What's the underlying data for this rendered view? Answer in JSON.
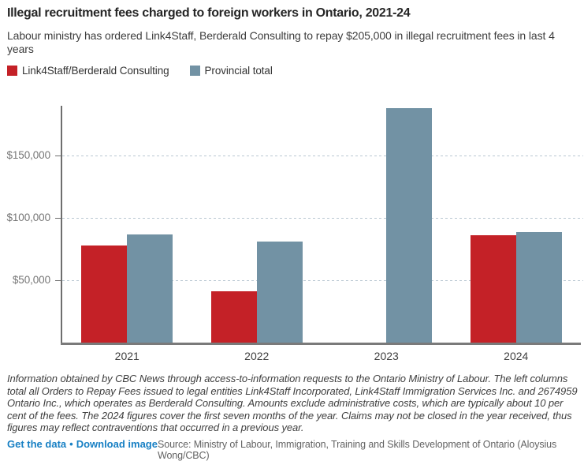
{
  "header": {
    "title": "Illegal recruitment fees charged to foreign workers in Ontario, 2021-24",
    "subtitle": "Labour ministry has ordered Link4Staff, Berderald Consulting to repay $205,000 in illegal recruitment fees in last 4 years"
  },
  "legend": {
    "items": [
      {
        "label": "Link4Staff/Berderald Consulting",
        "color": "#c42127"
      },
      {
        "label": "Provincial total",
        "color": "#7292a4"
      }
    ]
  },
  "chart_data": {
    "type": "bar",
    "title": "Illegal recruitment fees charged to foreign workers in Ontario, 2021-24",
    "categories": [
      "2021",
      "2022",
      "2023",
      "2024"
    ],
    "series": [
      {
        "name": "Link4Staff/Berderald Consulting",
        "color": "#c42127",
        "values": [
          78000,
          41000,
          0,
          86000
        ]
      },
      {
        "name": "Provincial total",
        "color": "#7292a4",
        "values": [
          87000,
          81000,
          188000,
          89000
        ]
      }
    ],
    "xlabel": "",
    "ylabel": "",
    "ylim": [
      0,
      190000
    ],
    "yticks": [
      {
        "value": 50000,
        "label": "$50,000"
      },
      {
        "value": 100000,
        "label": "$100,000"
      },
      {
        "value": 150000,
        "label": "$150,000"
      }
    ],
    "grid": "horizontal-dotted",
    "legend_position": "top-left",
    "colors": {
      "grid_line": "#b9c7d2",
      "y_axis_line": "#6e6e6e",
      "x_axis_line": "#7a7a7a"
    }
  },
  "footer": {
    "note": "Information obtained by CBC News through access-to-information requests to the Ontario Ministry of Labour. The left columns total all Orders to Repay Fees issued to legal entities Link4Staff Incorporated, Link4Staff Immigration Services Inc. and 2674959 Ontario Inc., which operates as Berderald Consulting. Amounts exclude administrative costs, which are typically about 10 per cent of the fees. The 2024 figures cover the first seven months of the year. Claims may not be closed in the year received, thus figures may reflect contraventions that occurred in a previous year.",
    "links": [
      {
        "label": "Get the data"
      },
      {
        "label": "Download image"
      }
    ],
    "separator": "•",
    "source": "Source: Ministry of Labour, Immigration, Training and Skills Development of Ontario (Aloysius Wong/CBC)",
    "link_color": "#1880c4"
  }
}
